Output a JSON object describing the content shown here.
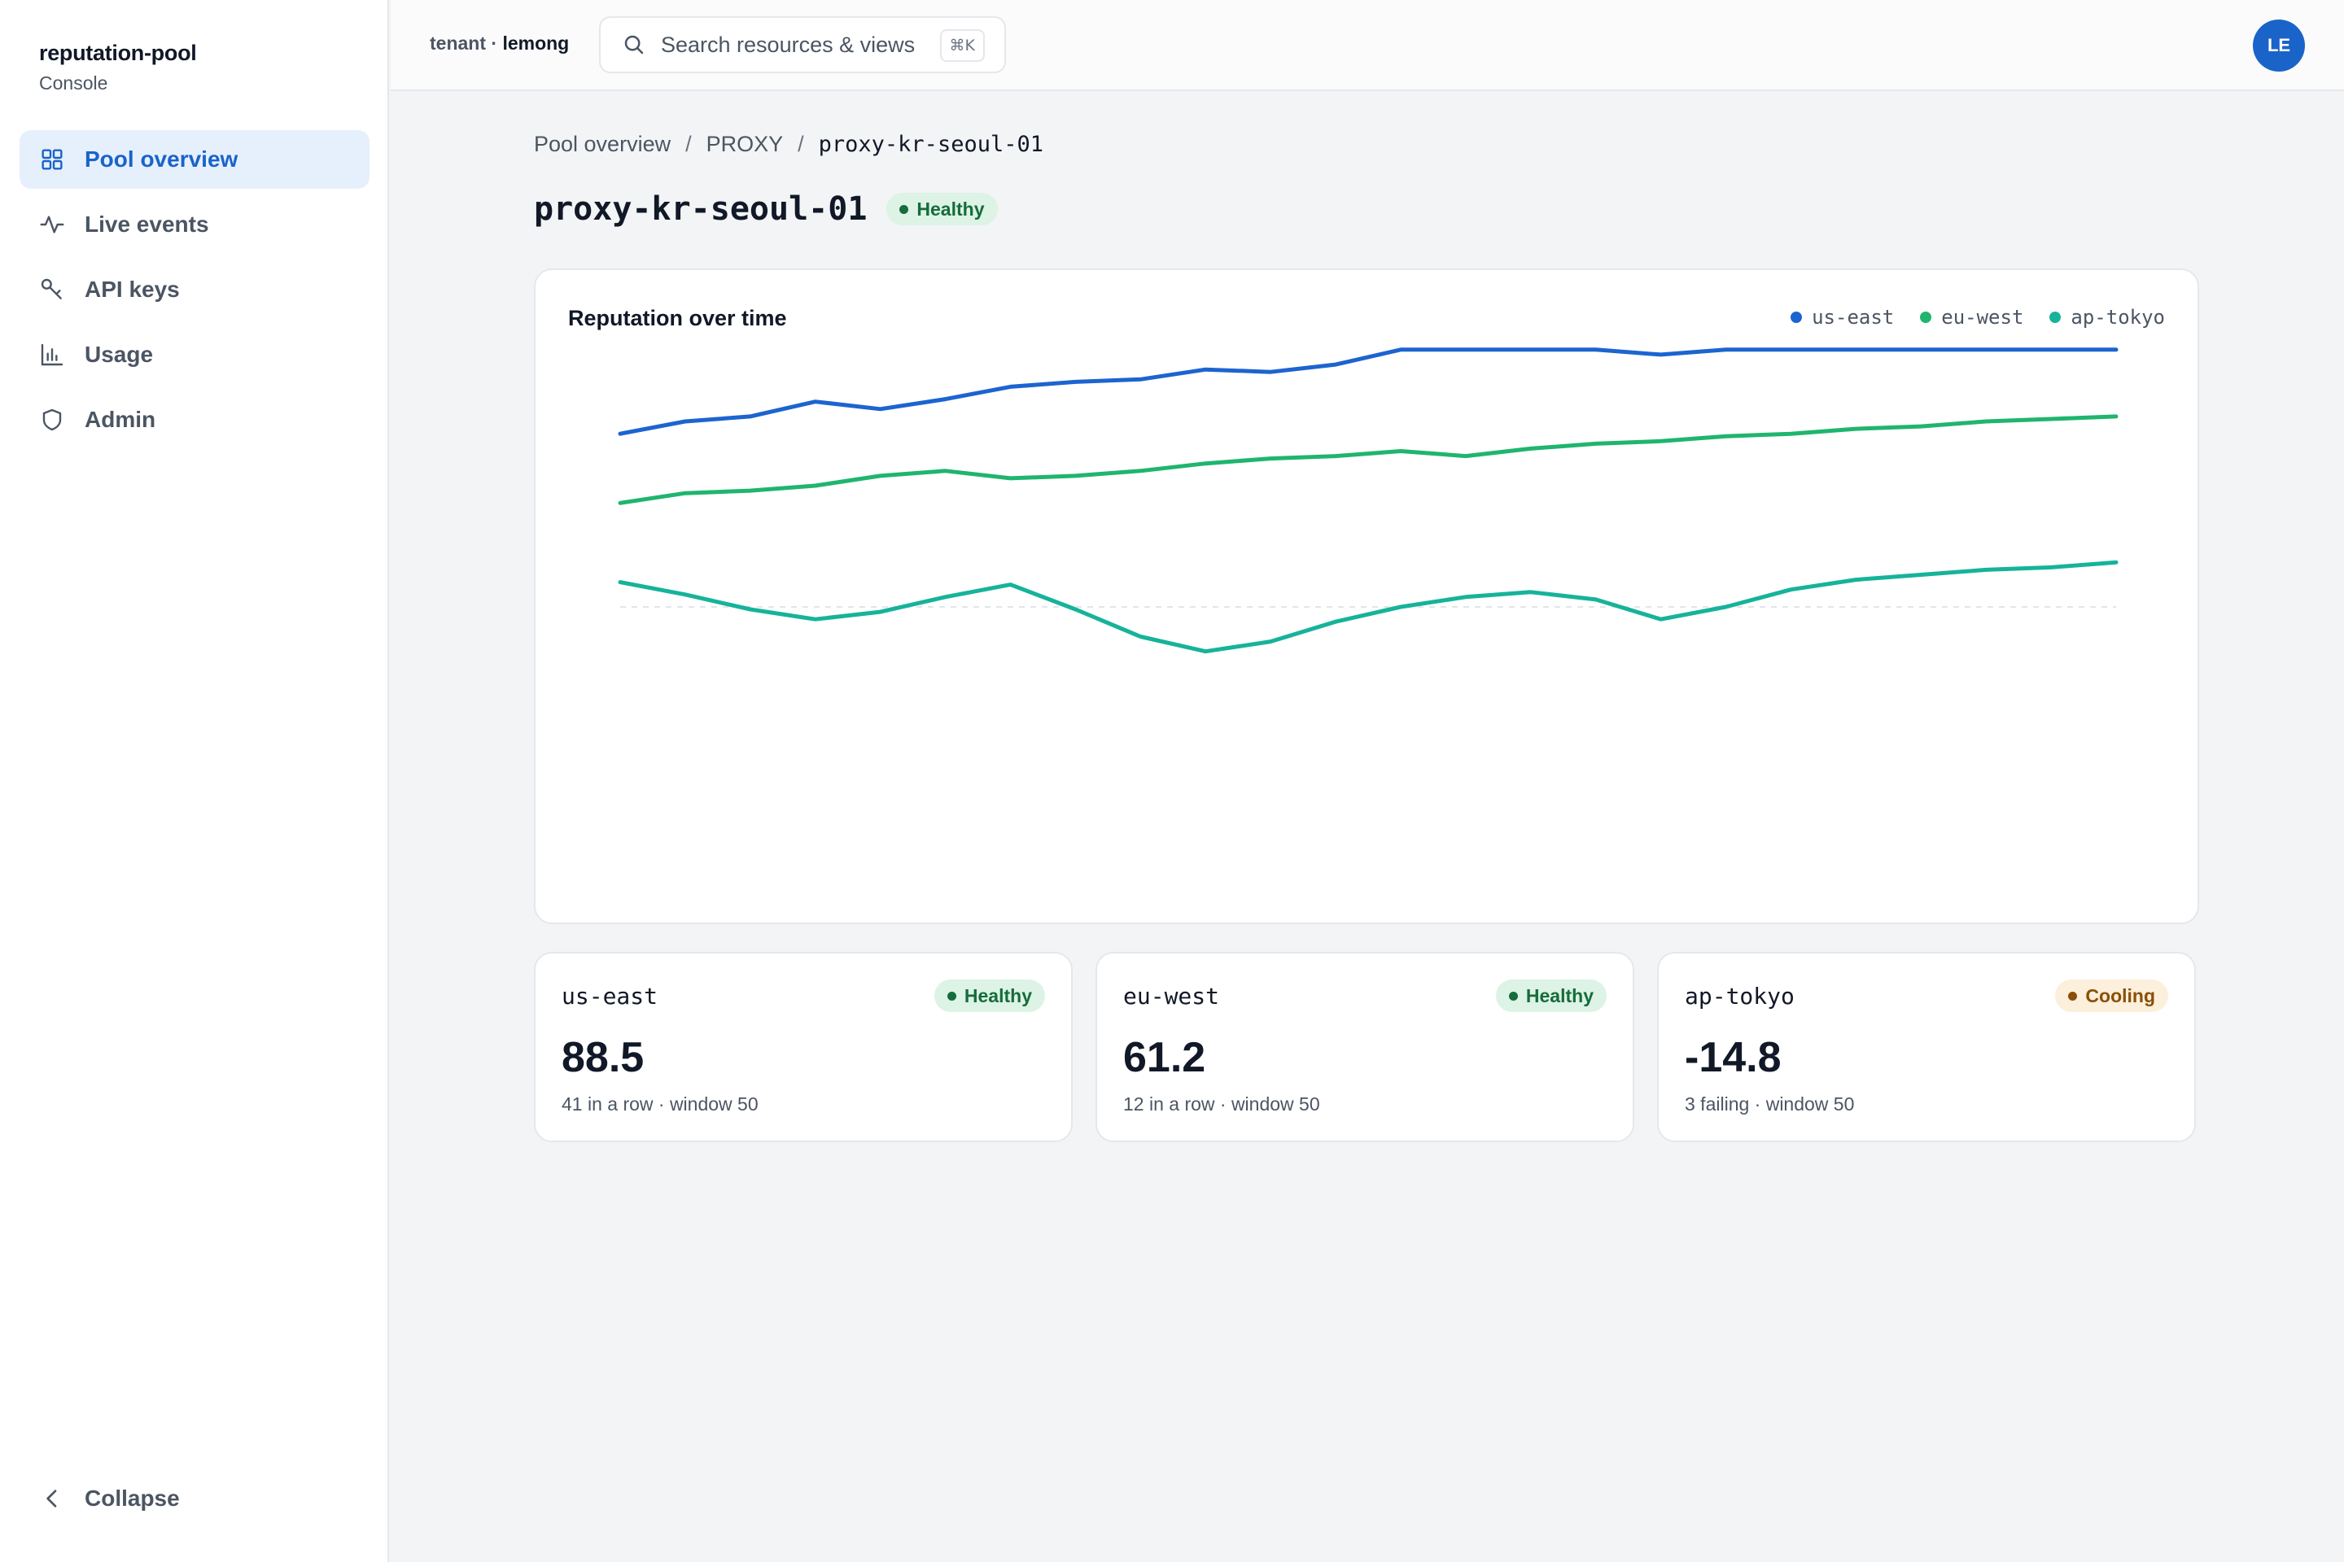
{
  "brand": {
    "name": "reputation-pool",
    "subtitle": "Console"
  },
  "nav": {
    "items": [
      {
        "label": "Pool overview",
        "icon": "grid-icon",
        "active": true
      },
      {
        "label": "Live events",
        "icon": "activity-icon",
        "active": false
      },
      {
        "label": "API keys",
        "icon": "key-icon",
        "active": false
      },
      {
        "label": "Usage",
        "icon": "bar-chart-icon",
        "active": false
      },
      {
        "label": "Admin",
        "icon": "shield-icon",
        "active": false
      }
    ],
    "collapse_label": "Collapse"
  },
  "topbar": {
    "tenant_prefix": "tenant · ",
    "tenant_name": "lemong",
    "search_placeholder": "Search resources & views",
    "search_shortcut": "⌘K",
    "avatar_initials": "LE"
  },
  "breadcrumb": {
    "items": [
      "Pool overview",
      "PROXY"
    ],
    "current": "proxy-kr-seoul-01"
  },
  "page": {
    "title": "proxy-kr-seoul-01",
    "status": "Healthy"
  },
  "colors": {
    "accent": "#1a63c9",
    "us_east": "#1c64d0",
    "eu_west": "#1fb56e",
    "ap_tokyo": "#16b39a",
    "healthy_bg": "#dcf3e6",
    "cooling_bg": "#fcefdc"
  },
  "chart_data": {
    "type": "line",
    "title": "Reputation over time",
    "xlabel": "",
    "ylabel": "",
    "grid": false,
    "legend_position": "top-right",
    "ylim": [
      -100,
      100
    ],
    "zero_line": true,
    "x": [
      1,
      2,
      3,
      4,
      5,
      6,
      7,
      8,
      9,
      10,
      11,
      12,
      13,
      14,
      15,
      16,
      17,
      18,
      19,
      20,
      21,
      22,
      23,
      24
    ],
    "series": [
      {
        "name": "us-east",
        "color": "#1c64d0",
        "values": [
          70,
          75,
          77,
          83,
          80,
          84,
          89,
          91,
          92,
          96,
          95,
          98,
          104,
          104,
          104,
          104,
          102,
          104,
          104,
          104,
          104,
          104,
          104,
          104
        ]
      },
      {
        "name": "eu-west",
        "color": "#1fb56e",
        "values": [
          42,
          46,
          47,
          49,
          53,
          55,
          52,
          53,
          55,
          58,
          60,
          61,
          63,
          61,
          64,
          66,
          67,
          69,
          70,
          72,
          73,
          75,
          76,
          77
        ]
      },
      {
        "name": "ap-tokyo",
        "color": "#16b39a",
        "values": [
          10,
          5,
          -1,
          -5,
          -2,
          4,
          9,
          -1,
          -12,
          -18,
          -14,
          -6,
          0,
          4,
          6,
          3,
          -5,
          0,
          7,
          11,
          13,
          15,
          16,
          18
        ]
      }
    ]
  },
  "regions": [
    {
      "name": "us-east",
      "status": "Healthy",
      "status_kind": "healthy",
      "value": "88.5",
      "detail": "41 in a row · window 50"
    },
    {
      "name": "eu-west",
      "status": "Healthy",
      "status_kind": "healthy",
      "value": "61.2",
      "detail": "12 in a row · window 50"
    },
    {
      "name": "ap-tokyo",
      "status": "Cooling",
      "status_kind": "cooling",
      "value": "-14.8",
      "detail": "3 failing · window 50"
    }
  ]
}
